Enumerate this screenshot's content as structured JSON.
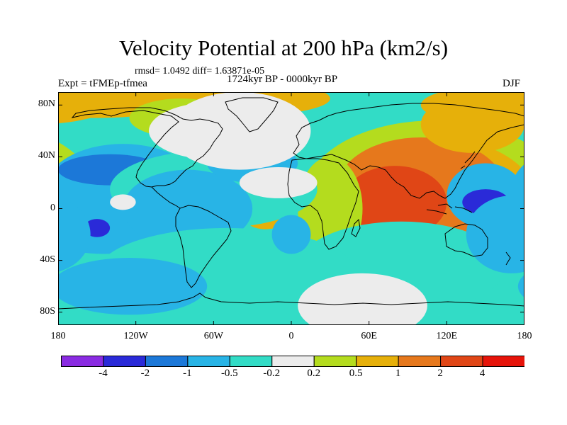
{
  "title": "Velocity Potential at 200 hPa (km2/s)",
  "stats": "rmsd= 1.0492 diff= 1.63871e-05",
  "left_label": "Expt = tFMEp-tfmea",
  "center_label": "1724kyr BP - 0000kyr BP",
  "right_label": "DJF",
  "y_axis": {
    "ticks": [
      "80N",
      "40N",
      "0",
      "40S",
      "80S"
    ],
    "values": [
      80,
      40,
      0,
      -40,
      -80
    ],
    "range": [
      -90,
      90
    ]
  },
  "x_axis": {
    "ticks": [
      "180",
      "120W",
      "60W",
      "0",
      "60E",
      "120E",
      "180"
    ],
    "values": [
      -180,
      -120,
      -60,
      0,
      60,
      120,
      180
    ],
    "range": [
      -180,
      180
    ]
  },
  "colorbar": {
    "colors": [
      "#8a2be2",
      "#2a2ad8",
      "#1c78d8",
      "#28b4e6",
      "#32dcc6",
      "#ececec",
      "#b4dc1e",
      "#e6b00a",
      "#e6781c",
      "#e04616",
      "#e6140a"
    ],
    "labels": [
      "-4",
      "-2",
      "-1",
      "-0.5",
      "-0.2",
      "0.2",
      "0.5",
      "1",
      "2",
      "4"
    ]
  },
  "field_blobs": [
    {
      "lon": 110,
      "lat": 10,
      "rlon": 100,
      "rlat": 58,
      "level": 0.3
    },
    {
      "lon": 110,
      "lat": 5,
      "rlon": 80,
      "rlat": 50,
      "level": 0.6
    },
    {
      "lon": 100,
      "lat": 15,
      "rlon": 65,
      "rlat": 40,
      "level": 1.2
    },
    {
      "lon": 80,
      "lat": 5,
      "rlon": 40,
      "rlat": 28,
      "level": 2.0
    },
    {
      "lon": 140,
      "lat": 65,
      "rlon": 40,
      "rlat": 22,
      "level": 0.9
    },
    {
      "lon": 160,
      "lat": 80,
      "rlon": 60,
      "rlat": 15,
      "level": 0.5
    },
    {
      "lon": 30,
      "lat": 0,
      "rlon": 25,
      "rlat": 40,
      "level": 0.4
    },
    {
      "lon": -150,
      "lat": 85,
      "rlon": 70,
      "rlat": 15,
      "level": 0.8
    },
    {
      "lon": -60,
      "lat": 85,
      "rlon": 90,
      "rlat": 15,
      "level": 0.6
    },
    {
      "lon": -85,
      "lat": 70,
      "rlon": 40,
      "rlat": 15,
      "level": 0.4
    },
    {
      "lon": -20,
      "lat": 0,
      "rlon": 20,
      "rlat": 16,
      "level": 0.7
    },
    {
      "lon": -15,
      "lat": 5,
      "rlon": 8,
      "rlat": 6,
      "level": 1.5
    },
    {
      "lon": 85,
      "lat": -45,
      "rlon": 80,
      "rlat": 35,
      "level": -0.25
    },
    {
      "lon": -130,
      "lat": 15,
      "rlon": 60,
      "rlat": 35,
      "level": -0.7
    },
    {
      "lon": -145,
      "lat": -10,
      "rlon": 55,
      "rlat": 25,
      "level": -0.7
    },
    {
      "lon": -140,
      "lat": 30,
      "rlon": 40,
      "rlat": 12,
      "level": -1.2
    },
    {
      "lon": -150,
      "lat": -15,
      "rlon": 10,
      "rlat": 7,
      "level": -2.5
    },
    {
      "lon": -60,
      "lat": 15,
      "rlon": 80,
      "rlat": 30,
      "level": -0.35
    },
    {
      "lon": -80,
      "lat": 0,
      "rlon": 50,
      "rlat": 30,
      "level": -0.7
    },
    {
      "lon": -50,
      "lat": -50,
      "rlon": 100,
      "rlat": 35,
      "level": -0.35
    },
    {
      "lon": -125,
      "lat": -60,
      "rlon": 60,
      "rlat": 22,
      "level": -0.7
    },
    {
      "lon": -30,
      "lat": 35,
      "rlon": 35,
      "rlat": 15,
      "level": -0.7
    },
    {
      "lon": 0,
      "lat": -20,
      "rlon": 15,
      "rlat": 15,
      "level": -0.7
    },
    {
      "lon": 150,
      "lat": 10,
      "rlon": 30,
      "rlat": 25,
      "level": -0.8
    },
    {
      "lon": 150,
      "lat": 5,
      "rlon": 18,
      "rlat": 10,
      "level": -2.5
    },
    {
      "lon": 170,
      "lat": -20,
      "rlon": 35,
      "rlat": 30,
      "level": -0.7
    }
  ],
  "neutral_blobs": [
    {
      "lon": -130,
      "lat": 5,
      "rlon": 10,
      "rlat": 6
    },
    {
      "lon": -40,
      "lat": 60,
      "rlon": 55,
      "rlat": 30
    },
    {
      "lon": -60,
      "lat": 60,
      "rlon": 50,
      "rlat": 22
    },
    {
      "lon": -10,
      "lat": 20,
      "rlon": 30,
      "rlat": 12
    },
    {
      "lon": 55,
      "lat": -75,
      "rlon": 50,
      "rlat": 25
    }
  ]
}
